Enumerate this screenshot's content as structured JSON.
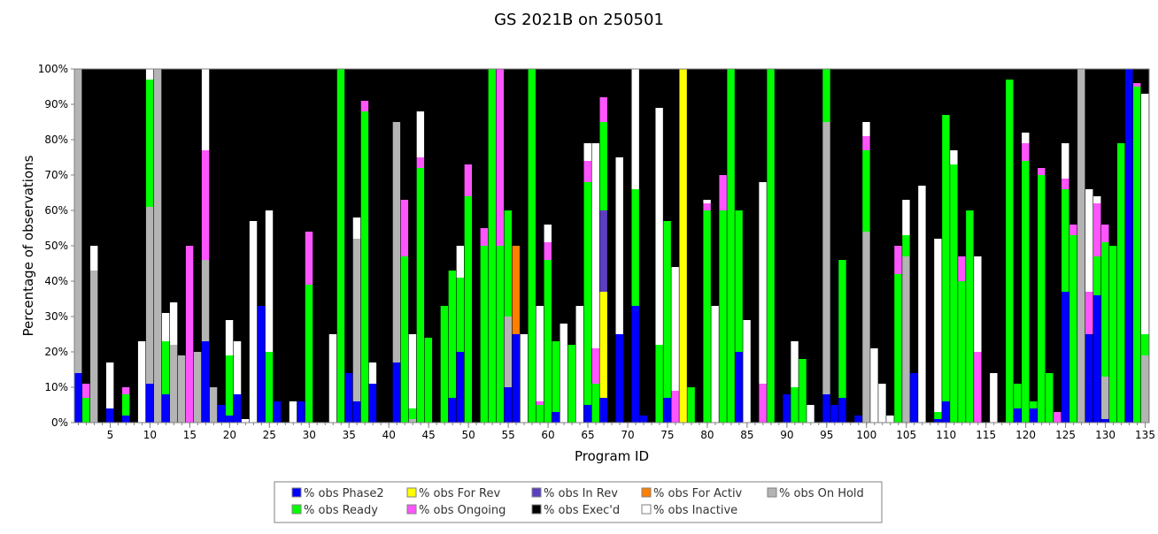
{
  "chart_data": {
    "type": "bar",
    "stacked": true,
    "title": "GS 2021B on 250501",
    "xlabel": "Program ID",
    "ylabel": "Percentage of observations",
    "ylim": [
      0,
      100
    ],
    "y_ticks": [
      "0%",
      "10%",
      "20%",
      "30%",
      "40%",
      "50%",
      "60%",
      "70%",
      "80%",
      "90%",
      "100%"
    ],
    "x_range": [
      1,
      135
    ],
    "x_ticks": [
      5,
      10,
      15,
      20,
      25,
      30,
      35,
      40,
      45,
      50,
      55,
      60,
      65,
      70,
      75,
      80,
      85,
      90,
      95,
      100,
      105,
      110,
      115,
      120,
      125,
      130,
      135
    ],
    "grid": false,
    "legend_position": "bottom",
    "legend": [
      {
        "key": "phase2",
        "label": "% obs Phase2",
        "color": "#0000ff"
      },
      {
        "key": "for_rev",
        "label": "% obs For Rev",
        "color": "#ffff00"
      },
      {
        "key": "in_rev",
        "label": "% obs In Rev",
        "color": "#5a3fc0"
      },
      {
        "key": "for_activ",
        "label": "% obs For Activ",
        "color": "#ff7f00"
      },
      {
        "key": "on_hold",
        "label": "% obs On Hold",
        "color": "#b4b4b4"
      },
      {
        "key": "ready",
        "label": "% obs Ready",
        "color": "#00ff00"
      },
      {
        "key": "ongoing",
        "label": "% obs Ongoing",
        "color": "#ff55ff"
      },
      {
        "key": "execd",
        "label": "% obs Exec'd",
        "color": "#000000"
      },
      {
        "key": "inactive",
        "label": "% obs Inactive",
        "color": "#ffffff"
      }
    ],
    "stack_order": [
      "phase2",
      "for_rev",
      "in_rev",
      "for_activ",
      "on_hold",
      "ready",
      "ongoing",
      "inactive",
      "execd"
    ],
    "programs": [
      {
        "id": 1,
        "phase2": 14,
        "on_hold": 86
      },
      {
        "id": 2,
        "ready": 7,
        "ongoing": 4,
        "execd": 89
      },
      {
        "id": 3,
        "on_hold": 43,
        "inactive": 7,
        "execd": 50
      },
      {
        "id": 4,
        "execd": 100
      },
      {
        "id": 5,
        "phase2": 4,
        "inactive": 13,
        "execd": 83
      },
      {
        "id": 6,
        "execd": 100
      },
      {
        "id": 7,
        "phase2": 2,
        "ready": 6,
        "ongoing": 2,
        "execd": 90
      },
      {
        "id": 8,
        "execd": 100
      },
      {
        "id": 9,
        "inactive": 23,
        "execd": 77
      },
      {
        "id": 10,
        "phase2": 11,
        "on_hold": 50,
        "ready": 36,
        "inactive": 3
      },
      {
        "id": 11,
        "on_hold": 100
      },
      {
        "id": 12,
        "phase2": 8,
        "ready": 15,
        "inactive": 8,
        "execd": 69
      },
      {
        "id": 13,
        "on_hold": 22,
        "inactive": 12,
        "execd": 66
      },
      {
        "id": 14,
        "on_hold": 19,
        "execd": 81
      },
      {
        "id": 15,
        "ongoing": 50,
        "execd": 50
      },
      {
        "id": 16,
        "on_hold": 20,
        "execd": 80
      },
      {
        "id": 17,
        "phase2": 23,
        "on_hold": 23,
        "ongoing": 31,
        "inactive": 23
      },
      {
        "id": 18,
        "on_hold": 10,
        "execd": 90
      },
      {
        "id": 19,
        "phase2": 5,
        "execd": 95
      },
      {
        "id": 20,
        "phase2": 2,
        "ready": 17,
        "inactive": 10,
        "execd": 71
      },
      {
        "id": 21,
        "phase2": 8,
        "inactive": 15,
        "execd": 77
      },
      {
        "id": 22,
        "inactive": 1,
        "execd": 99
      },
      {
        "id": 23,
        "inactive": 57,
        "execd": 43
      },
      {
        "id": 24,
        "phase2": 33,
        "execd": 67
      },
      {
        "id": 25,
        "ready": 20,
        "inactive": 40,
        "execd": 40
      },
      {
        "id": 26,
        "phase2": 6,
        "execd": 94
      },
      {
        "id": 27,
        "execd": 100
      },
      {
        "id": 28,
        "inactive": 6,
        "execd": 94
      },
      {
        "id": 29,
        "phase2": 6,
        "execd": 94
      },
      {
        "id": 30,
        "ready": 39,
        "ongoing": 15,
        "execd": 46
      },
      {
        "id": 31,
        "execd": 100
      },
      {
        "id": 32,
        "execd": 100
      },
      {
        "id": 33,
        "inactive": 25,
        "execd": 75
      },
      {
        "id": 34,
        "ready": 100
      },
      {
        "id": 35,
        "phase2": 14,
        "execd": 86
      },
      {
        "id": 36,
        "phase2": 6,
        "on_hold": 46,
        "inactive": 6,
        "execd": 42
      },
      {
        "id": 37,
        "ready": 88,
        "ongoing": 3,
        "execd": 9
      },
      {
        "id": 38,
        "phase2": 11,
        "inactive": 6,
        "execd": 83
      },
      {
        "id": 39,
        "execd": 100
      },
      {
        "id": 40,
        "execd": 100
      },
      {
        "id": 41,
        "phase2": 17,
        "on_hold": 68,
        "execd": 15
      },
      {
        "id": 42,
        "ready": 47,
        "ongoing": 16,
        "execd": 37
      },
      {
        "id": 43,
        "on_hold": 1,
        "ready": 3,
        "inactive": 21,
        "execd": 75
      },
      {
        "id": 44,
        "ready": 72,
        "ongoing": 3,
        "inactive": 13,
        "execd": 12
      },
      {
        "id": 45,
        "ready": 24,
        "execd": 76
      },
      {
        "id": 46,
        "execd": 100
      },
      {
        "id": 47,
        "ready": 33,
        "execd": 67
      },
      {
        "id": 48,
        "phase2": 7,
        "ready": 36,
        "execd": 57
      },
      {
        "id": 49,
        "phase2": 20,
        "ready": 21,
        "inactive": 9,
        "execd": 50
      },
      {
        "id": 50,
        "ready": 64,
        "ongoing": 9,
        "execd": 27
      },
      {
        "id": 51,
        "execd": 100
      },
      {
        "id": 52,
        "ready": 50,
        "ongoing": 5,
        "execd": 45
      },
      {
        "id": 53,
        "ready": 100
      },
      {
        "id": 54,
        "ready": 50,
        "ongoing": 50
      },
      {
        "id": 55,
        "phase2": 10,
        "on_hold": 20,
        "ready": 30,
        "execd": 40
      },
      {
        "id": 56,
        "phase2": 25,
        "for_activ": 25,
        "execd": 50
      },
      {
        "id": 57,
        "inactive": 25,
        "execd": 75
      },
      {
        "id": 58,
        "ready": 100
      },
      {
        "id": 59,
        "ready": 5,
        "ongoing": 1,
        "inactive": 27,
        "execd": 67
      },
      {
        "id": 60,
        "ready": 46,
        "ongoing": 5,
        "inactive": 5,
        "execd": 44
      },
      {
        "id": 61,
        "phase2": 3,
        "ready": 20,
        "execd": 77
      },
      {
        "id": 62,
        "inactive": 28,
        "execd": 72
      },
      {
        "id": 63,
        "ready": 22,
        "execd": 78
      },
      {
        "id": 64,
        "inactive": 33,
        "execd": 67
      },
      {
        "id": 65,
        "phase2": 5,
        "ready": 63,
        "ongoing": 6,
        "inactive": 5,
        "execd": 21
      },
      {
        "id": 66,
        "ready": 11,
        "ongoing": 10,
        "inactive": 58,
        "execd": 21
      },
      {
        "id": 67,
        "phase2": 7,
        "for_rev": 30,
        "in_rev": 23,
        "ready": 25,
        "ongoing": 7,
        "execd": 8
      },
      {
        "id": 68,
        "execd": 100
      },
      {
        "id": 69,
        "phase2": 25,
        "inactive": 50,
        "execd": 25
      },
      {
        "id": 70,
        "execd": 100
      },
      {
        "id": 71,
        "phase2": 33,
        "ready": 33,
        "inactive": 34
      },
      {
        "id": 72,
        "phase2": 2,
        "execd": 98
      },
      {
        "id": 73,
        "execd": 100
      },
      {
        "id": 74,
        "ready": 22,
        "inactive": 67,
        "execd": 11
      },
      {
        "id": 75,
        "phase2": 7,
        "ready": 50,
        "execd": 43
      },
      {
        "id": 76,
        "ongoing": 9,
        "inactive": 35,
        "execd": 56
      },
      {
        "id": 77,
        "for_rev": 100
      },
      {
        "id": 78,
        "ready": 10,
        "execd": 90
      },
      {
        "id": 79,
        "execd": 100
      },
      {
        "id": 80,
        "ready": 60,
        "ongoing": 2,
        "inactive": 1,
        "execd": 37
      },
      {
        "id": 81,
        "inactive": 33,
        "execd": 67
      },
      {
        "id": 82,
        "ready": 60,
        "ongoing": 10,
        "execd": 30
      },
      {
        "id": 83,
        "ready": 100
      },
      {
        "id": 84,
        "phase2": 20,
        "ready": 40,
        "execd": 40
      },
      {
        "id": 85,
        "inactive": 29,
        "execd": 71
      },
      {
        "id": 86,
        "execd": 100
      },
      {
        "id": 87,
        "ongoing": 11,
        "inactive": 57,
        "execd": 32
      },
      {
        "id": 88,
        "ready": 100
      },
      {
        "id": 89,
        "execd": 100
      },
      {
        "id": 90,
        "phase2": 8,
        "execd": 92
      },
      {
        "id": 91,
        "ready": 10,
        "inactive": 13,
        "execd": 77
      },
      {
        "id": 92,
        "ready": 18,
        "execd": 82
      },
      {
        "id": 93,
        "inactive": 5,
        "execd": 95
      },
      {
        "id": 94,
        "execd": 100
      },
      {
        "id": 95,
        "phase2": 8,
        "on_hold": 77,
        "ready": 15
      },
      {
        "id": 96,
        "phase2": 5,
        "execd": 95
      },
      {
        "id": 97,
        "phase2": 7,
        "ready": 39,
        "execd": 54
      },
      {
        "id": 98,
        "execd": 100
      },
      {
        "id": 99,
        "phase2": 2,
        "execd": 98
      },
      {
        "id": 100,
        "on_hold": 54,
        "ready": 23,
        "ongoing": 4,
        "inactive": 4,
        "execd": 15
      },
      {
        "id": 101,
        "inactive": 21,
        "execd": 79
      },
      {
        "id": 102,
        "inactive": 11,
        "execd": 89
      },
      {
        "id": 103,
        "inactive": 2,
        "execd": 98
      },
      {
        "id": 104,
        "ready": 42,
        "ongoing": 8,
        "execd": 50
      },
      {
        "id": 105,
        "ready": 6,
        "on_hold": 47,
        "inactive": 10,
        "execd": 37
      },
      {
        "id": 106,
        "phase2": 14,
        "execd": 86
      },
      {
        "id": 107,
        "inactive": 67,
        "execd": 33
      },
      {
        "id": 108,
        "execd": 100
      },
      {
        "id": 109,
        "phase2": 1,
        "ready": 2,
        "inactive": 49,
        "execd": 48
      },
      {
        "id": 110,
        "phase2": 6,
        "ready": 81,
        "execd": 13
      },
      {
        "id": 111,
        "ready": 73,
        "inactive": 4,
        "execd": 23
      },
      {
        "id": 112,
        "ready": 40,
        "ongoing": 7,
        "execd": 53
      },
      {
        "id": 113,
        "ready": 60,
        "execd": 40
      },
      {
        "id": 114,
        "ongoing": 20,
        "inactive": 27,
        "execd": 53
      },
      {
        "id": 115,
        "execd": 100
      },
      {
        "id": 116,
        "inactive": 14,
        "execd": 86
      },
      {
        "id": 117,
        "execd": 100
      },
      {
        "id": 118,
        "ready": 97,
        "execd": 3
      },
      {
        "id": 119,
        "phase2": 4,
        "ready": 7,
        "execd": 89
      },
      {
        "id": 120,
        "ready": 74,
        "ongoing": 5,
        "inactive": 3,
        "execd": 18
      },
      {
        "id": 121,
        "phase2": 4,
        "ready": 2,
        "execd": 94
      },
      {
        "id": 122,
        "ready": 70,
        "ongoing": 2,
        "execd": 28
      },
      {
        "id": 123,
        "ready": 14,
        "execd": 86
      },
      {
        "id": 124,
        "ongoing": 3,
        "execd": 97
      },
      {
        "id": 125,
        "phase2": 37,
        "ready": 29,
        "ongoing": 3,
        "inactive": 10,
        "execd": 21
      },
      {
        "id": 126,
        "ready": 53,
        "ongoing": 3,
        "execd": 44
      },
      {
        "id": 127,
        "on_hold": 100
      },
      {
        "id": 128,
        "phase2": 25,
        "ongoing": 12,
        "inactive": 29,
        "execd": 34
      },
      {
        "id": 129,
        "phase2": 36,
        "ready": 11,
        "ongoing": 15,
        "inactive": 2,
        "execd": 36
      },
      {
        "id": 130,
        "phase2": 1,
        "on_hold": 12,
        "ready": 38,
        "ongoing": 5,
        "execd": 44
      },
      {
        "id": 131,
        "ready": 50,
        "execd": 50
      },
      {
        "id": 132,
        "ready": 79,
        "execd": 21
      },
      {
        "id": 133,
        "phase2": 100
      },
      {
        "id": 134,
        "ready": 95,
        "ongoing": 1,
        "execd": 4
      },
      {
        "id": 135,
        "on_hold": 19,
        "ready": 6,
        "inactive": 68,
        "execd": 7
      }
    ]
  }
}
